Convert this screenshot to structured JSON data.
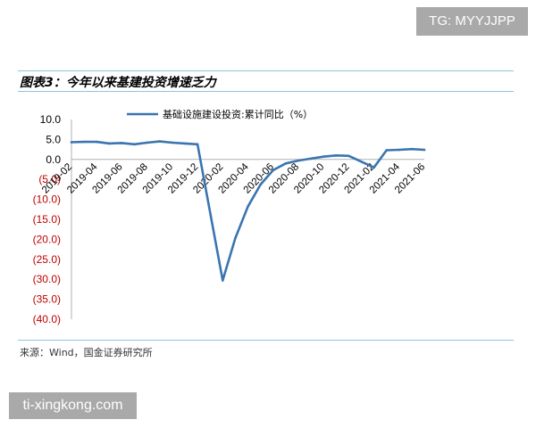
{
  "watermark_top": "TG: MYYJJPP",
  "watermark_bottom": "ti-xingkong.com",
  "figure_title": "图表3：今年以来基建投资增速乏力",
  "source_note": "来源：Wind，国金证券研究所",
  "colors": {
    "line": "#3a75b0",
    "negative_tick": "#c00000",
    "positive_tick": "#000000",
    "rule": "#8fc3e0"
  },
  "chart_data": {
    "type": "line",
    "title": "",
    "xlabel": "",
    "ylabel": "",
    "ylim": [
      -40,
      10
    ],
    "y_ticks": [
      10,
      5,
      0,
      -5,
      -10,
      -15,
      -20,
      -25,
      -30,
      -35,
      -40
    ],
    "y_tick_labels": [
      "10.0",
      "5.0",
      "0.0",
      "(5.0)",
      "(10.0)",
      "(15.0)",
      "(20.0)",
      "(25.0)",
      "(30.0)",
      "(35.0)",
      "(40.0)"
    ],
    "x_tick_labels": [
      "2019-02",
      "2019-04",
      "2019-06",
      "2019-08",
      "2019-10",
      "2019-12",
      "2020-02",
      "2020-04",
      "2020-06",
      "2020-08",
      "2020-10",
      "2020-12",
      "2021-02",
      "2021-04",
      "2021-06"
    ],
    "grid": false,
    "legend_position": "top",
    "series": [
      {
        "name": "基础设施建设投资:累计同比（%）",
        "x": [
          "2019-02",
          "2019-03",
          "2019-04",
          "2019-05",
          "2019-06",
          "2019-07",
          "2019-08",
          "2019-09",
          "2019-10",
          "2019-11",
          "2019-12",
          "2020-01",
          "2020-02",
          "2020-03",
          "2020-04",
          "2020-05",
          "2020-06",
          "2020-07",
          "2020-08",
          "2020-09",
          "2020-10",
          "2020-11",
          "2020-12",
          "2021-01",
          "2021-02",
          "2021-03",
          "2021-04",
          "2021-05",
          "2021-06"
        ],
        "values": [
          4.3,
          4.4,
          4.4,
          4.0,
          4.1,
          3.8,
          4.2,
          4.5,
          4.2,
          4.0,
          3.8,
          null,
          -30.3,
          -19.7,
          -11.8,
          -6.3,
          -2.7,
          -1.0,
          -0.3,
          0.2,
          0.7,
          1.0,
          0.9,
          null,
          -2.0,
          2.3,
          2.4,
          2.6,
          2.4
        ]
      }
    ]
  }
}
